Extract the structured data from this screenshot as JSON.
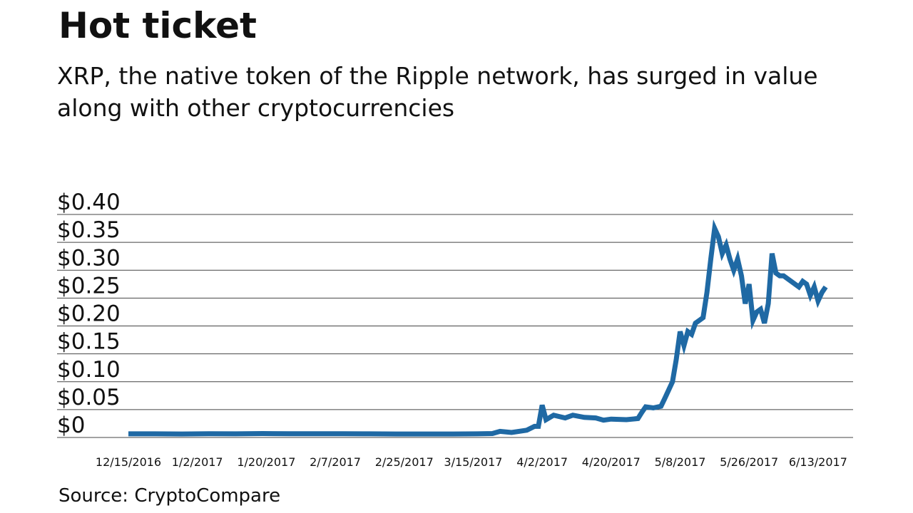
{
  "chart_data": {
    "type": "line",
    "title": "Hot ticket",
    "subtitle": "XRP, the native token of the Ripple network, has surged in value along with other cryptocurrencies",
    "source": "Source: CryptoCompare",
    "color": "#1f69a4",
    "x": [
      "2016-12-15",
      "2016-12-22",
      "2016-12-29",
      "2017-01-05",
      "2017-01-12",
      "2017-01-19",
      "2017-01-26",
      "2017-02-02",
      "2017-02-09",
      "2017-02-16",
      "2017-02-23",
      "2017-03-02",
      "2017-03-09",
      "2017-03-16",
      "2017-03-20",
      "2017-03-22",
      "2017-03-25",
      "2017-03-29",
      "2017-03-31",
      "2017-04-01",
      "2017-04-02",
      "2017-04-03",
      "2017-04-05",
      "2017-04-08",
      "2017-04-10",
      "2017-04-13",
      "2017-04-16",
      "2017-04-18",
      "2017-04-20",
      "2017-04-24",
      "2017-04-27",
      "2017-04-28",
      "2017-04-29",
      "2017-05-01",
      "2017-05-03",
      "2017-05-04",
      "2017-05-05",
      "2017-05-06",
      "2017-05-07",
      "2017-05-08",
      "2017-05-09",
      "2017-05-10",
      "2017-05-11",
      "2017-05-12",
      "2017-05-13",
      "2017-05-14",
      "2017-05-15",
      "2017-05-16",
      "2017-05-17",
      "2017-05-18",
      "2017-05-19",
      "2017-05-20",
      "2017-05-21",
      "2017-05-22",
      "2017-05-23",
      "2017-05-24",
      "2017-05-25",
      "2017-05-26",
      "2017-05-27",
      "2017-05-28",
      "2017-05-29",
      "2017-05-30",
      "2017-05-31",
      "2017-06-01",
      "2017-06-02",
      "2017-06-03",
      "2017-06-04",
      "2017-06-06",
      "2017-06-08",
      "2017-06-09",
      "2017-06-10",
      "2017-06-11",
      "2017-06-12",
      "2017-06-13",
      "2017-06-14",
      "2017-06-15"
    ],
    "values": [
      0.0065,
      0.0065,
      0.0063,
      0.0066,
      0.0065,
      0.007,
      0.0068,
      0.0066,
      0.0066,
      0.0065,
      0.0062,
      0.0062,
      0.0063,
      0.0065,
      0.007,
      0.011,
      0.009,
      0.013,
      0.02,
      0.02,
      0.058,
      0.032,
      0.04,
      0.035,
      0.04,
      0.036,
      0.035,
      0.031,
      0.033,
      0.032,
      0.034,
      0.045,
      0.055,
      0.053,
      0.056,
      0.07,
      0.085,
      0.1,
      0.14,
      0.19,
      0.165,
      0.19,
      0.185,
      0.205,
      0.21,
      0.215,
      0.26,
      0.32,
      0.375,
      0.36,
      0.33,
      0.345,
      0.32,
      0.3,
      0.32,
      0.29,
      0.24,
      0.275,
      0.21,
      0.225,
      0.23,
      0.205,
      0.24,
      0.33,
      0.295,
      0.29,
      0.29,
      0.28,
      0.27,
      0.28,
      0.275,
      0.255,
      0.27,
      0.245,
      0.26,
      0.27
    ],
    "xlim": [
      "2016-12-15",
      "2017-06-16"
    ],
    "xticks": [
      {
        "value": "2016-12-15",
        "label": "12/15/2016"
      },
      {
        "value": "2017-01-02",
        "label": "1/2/2017"
      },
      {
        "value": "2017-01-20",
        "label": "1/20/2017"
      },
      {
        "value": "2017-02-07",
        "label": "2/7/2017"
      },
      {
        "value": "2017-02-25",
        "label": "2/25/2017"
      },
      {
        "value": "2017-03-15",
        "label": "3/15/2017"
      },
      {
        "value": "2017-04-02",
        "label": "4/2/2017"
      },
      {
        "value": "2017-04-20",
        "label": "4/20/2017"
      },
      {
        "value": "2017-05-08",
        "label": "5/8/2017"
      },
      {
        "value": "2017-05-26",
        "label": "5/26/2017"
      },
      {
        "value": "2017-06-13",
        "label": "6/13/2017"
      }
    ],
    "ylim": [
      0,
      0.4
    ],
    "yticks": [
      {
        "value": 0,
        "label": "$0"
      },
      {
        "value": 0.05,
        "label": "$0.05"
      },
      {
        "value": 0.1,
        "label": "$0.10"
      },
      {
        "value": 0.15,
        "label": "$0.15"
      },
      {
        "value": 0.2,
        "label": "$0.20"
      },
      {
        "value": 0.25,
        "label": "$0.25"
      },
      {
        "value": 0.3,
        "label": "$0.30"
      },
      {
        "value": 0.35,
        "label": "$0.35"
      },
      {
        "value": 0.4,
        "label": "$0.40"
      }
    ],
    "grid": true
  }
}
